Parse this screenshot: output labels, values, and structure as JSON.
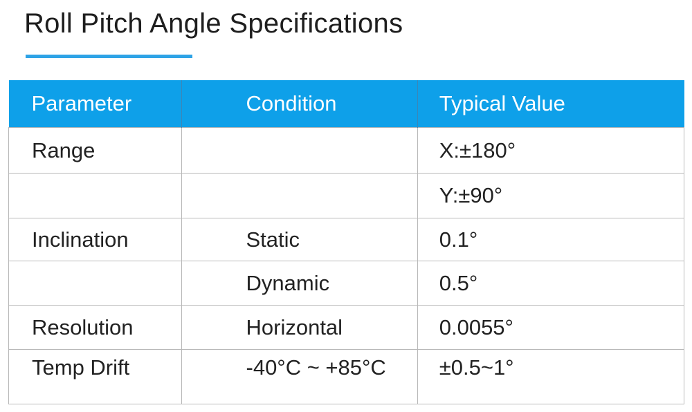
{
  "title": "Roll Pitch Angle Specifications",
  "accent_color": "#0ea0e9",
  "table": {
    "headers": [
      "Parameter",
      "Condition",
      "Typical Value"
    ],
    "rows": [
      [
        "Range",
        "",
        "X:±180°"
      ],
      [
        "",
        "",
        "Y:±90°"
      ],
      [
        "Inclination",
        "Static",
        "0.1°"
      ],
      [
        "",
        "Dynamic",
        "0.5°"
      ],
      [
        "Resolution",
        "Horizontal",
        "0.0055°"
      ],
      [
        "Temp Drift",
        "-40°C ~ +85°C",
        "±0.5~1°"
      ]
    ]
  }
}
